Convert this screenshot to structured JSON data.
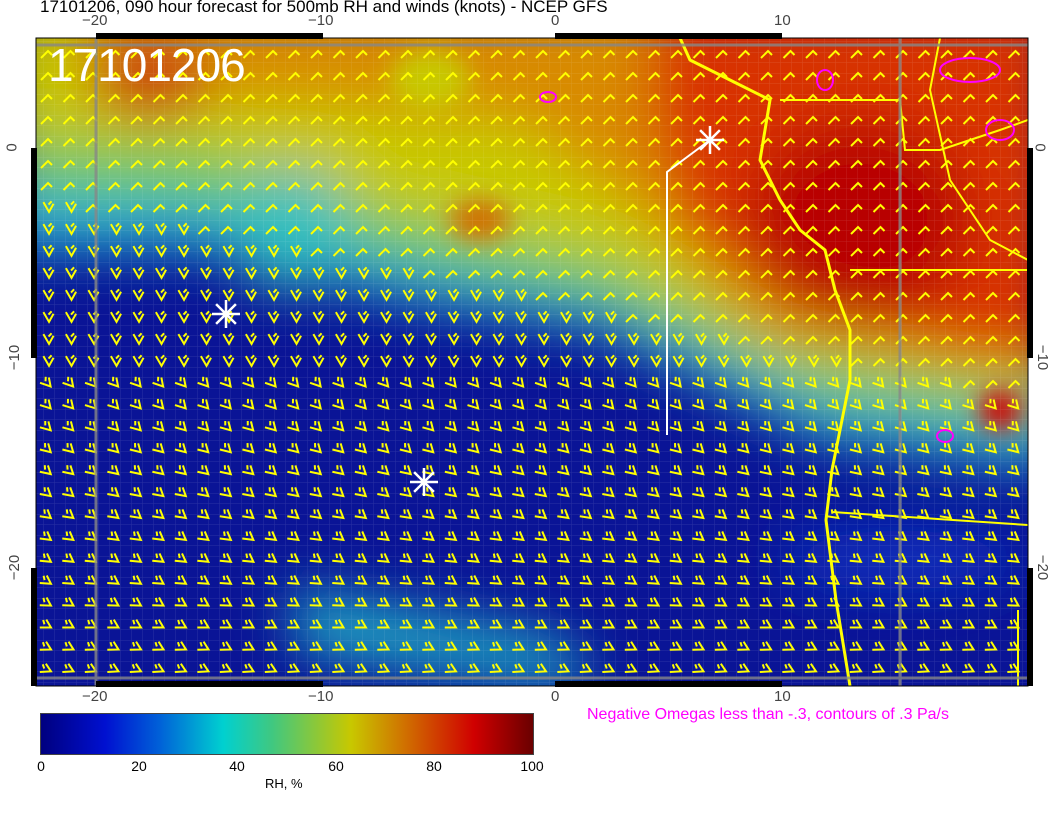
{
  "title": "17101206, 090 hour forecast for 500mb RH and winds (knots) - NCEP GFS",
  "stamp": "17101206",
  "x_ticks": [
    "−20",
    "−10",
    "0",
    "10"
  ],
  "y_ticks": [
    "0",
    "−10",
    "−20"
  ],
  "colorbar": {
    "ticks": [
      "0",
      "20",
      "40",
      "60",
      "80",
      "100"
    ],
    "label": "RH, %",
    "range": [
      0,
      100
    ]
  },
  "omega_note": "Negative Omegas less than -.3, contours of .3 Pa/s",
  "colors": {
    "wind_barbs": "#ffff00",
    "coastline": "#ffff00",
    "omega_contours": "#ff00ff",
    "markers": "#ffffff"
  }
}
